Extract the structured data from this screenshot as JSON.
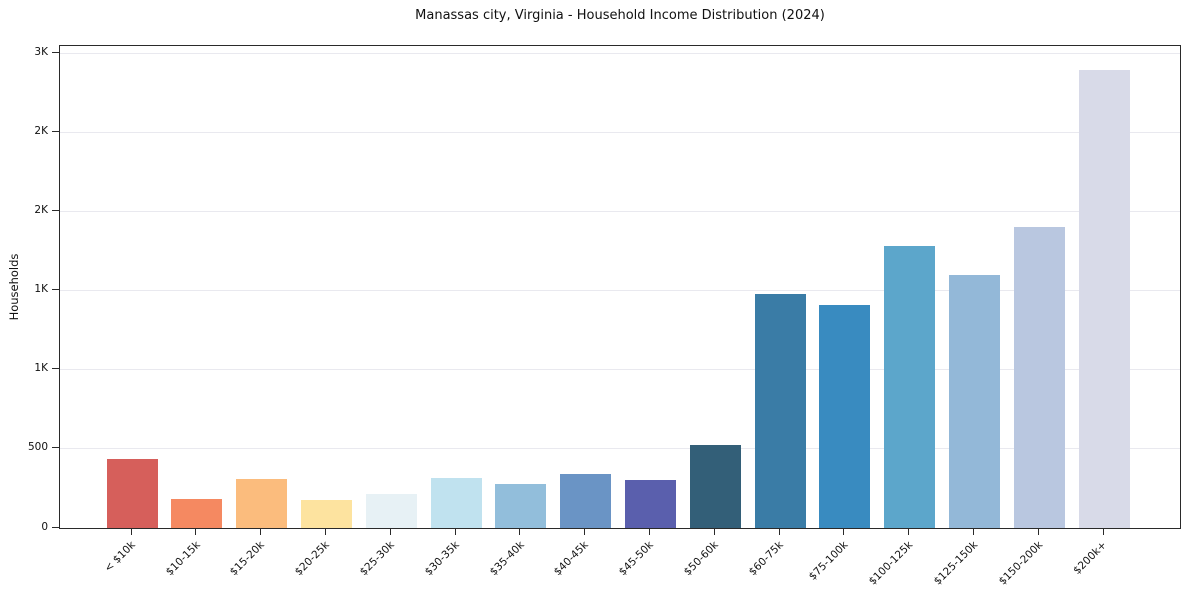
{
  "chart_data": {
    "type": "bar",
    "title": "Manassas city, Virginia - Household Income Distribution (2024)",
    "xlabel": "",
    "ylabel": "Households",
    "categories": [
      "< $10k",
      "$10-15k",
      "$15-20k",
      "$20-25k",
      "$25-30k",
      "$30-35k",
      "$35-40k",
      "$40-45k",
      "$45-50k",
      "$50-60k",
      "$60-75k",
      "$75-100k",
      "$100-125k",
      "$125-150k",
      "$150-200k",
      "$200k+"
    ],
    "values": [
      435,
      185,
      310,
      180,
      215,
      315,
      280,
      340,
      305,
      525,
      1480,
      1410,
      1785,
      1600,
      1905,
      2900
    ],
    "bar_colors": [
      "#d65f5b",
      "#f58961",
      "#fbbc7d",
      "#fde39f",
      "#e7f1f5",
      "#c0e2ef",
      "#92bedb",
      "#6a94c5",
      "#5a5fad",
      "#335f78",
      "#3a7ca6",
      "#398bc0",
      "#5ca6cb",
      "#93b8d8",
      "#b9c7e0",
      "#d8dae8"
    ],
    "ylim": [
      0,
      3050
    ],
    "yticks": {
      "values": [
        0,
        500,
        1000,
        1500,
        2000,
        2500,
        3000
      ],
      "labels": [
        "0",
        "500",
        "1K",
        "1K",
        "2K",
        "2K",
        "3K"
      ]
    },
    "grid": true,
    "legend": "none",
    "colors": {
      "axis": "#2a2a2a",
      "grid": "#e9e9ef",
      "text": "#111111",
      "background": "#ffffff"
    }
  }
}
